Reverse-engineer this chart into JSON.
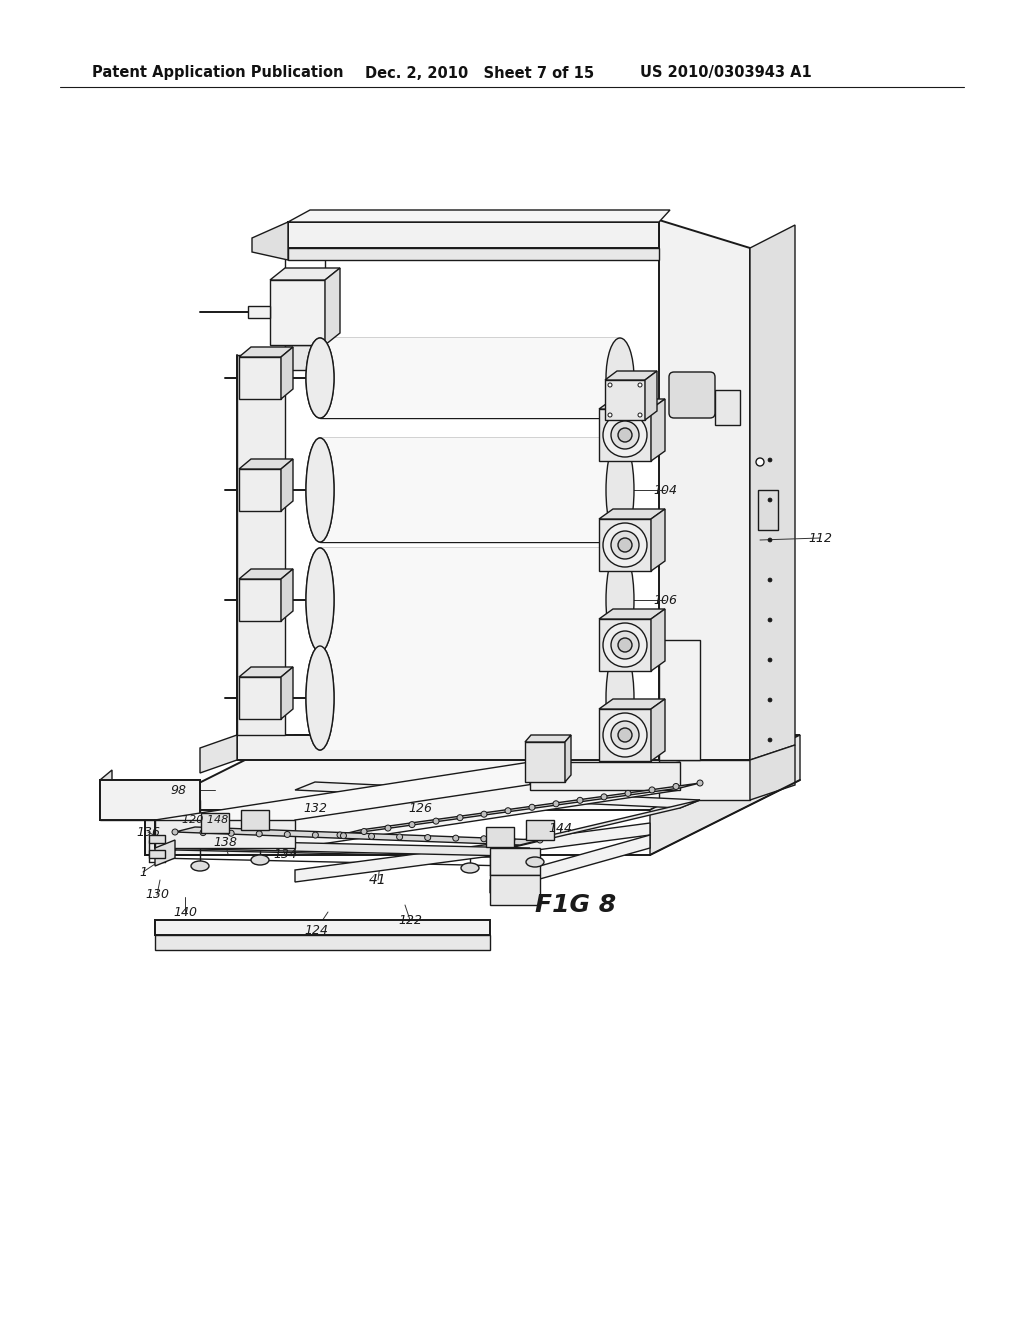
{
  "background_color": "#ffffff",
  "line_color": "#1a1a1a",
  "header_left": "Patent Application Publication",
  "header_mid": "Dec. 2, 2010   Sheet 7 of 15",
  "header_right": "US 2010/0303943 A1",
  "fig_label": "F1G 8",
  "lw_thick": 1.4,
  "lw_med": 1.0,
  "lw_thin": 0.7
}
